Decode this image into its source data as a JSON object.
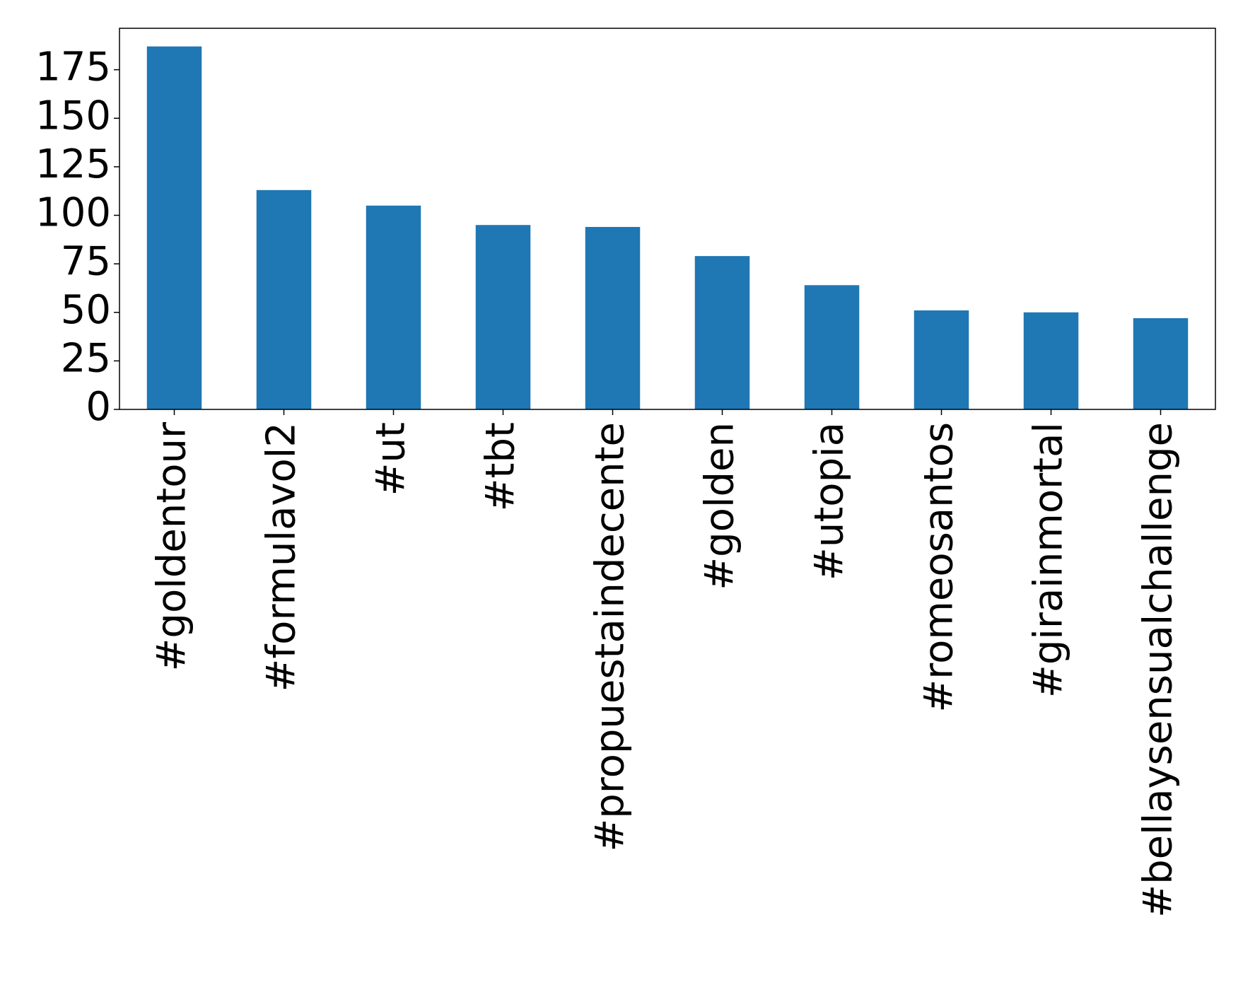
{
  "chart_data": {
    "type": "bar",
    "categories": [
      "#goldentour",
      "#formulavol2",
      "#ut",
      "#tbt",
      "#propuestaindecente",
      "#golden",
      "#utopia",
      "#romeosantos",
      "#girainmortal",
      "#bellaysensualchallenge"
    ],
    "values": [
      187,
      113,
      105,
      95,
      94,
      79,
      64,
      51,
      50,
      47
    ],
    "color": "#1f77b4",
    "ylim": [
      0,
      196.35
    ],
    "yticks": [
      0,
      25,
      50,
      75,
      100,
      125,
      150,
      175
    ],
    "grid": false
  }
}
